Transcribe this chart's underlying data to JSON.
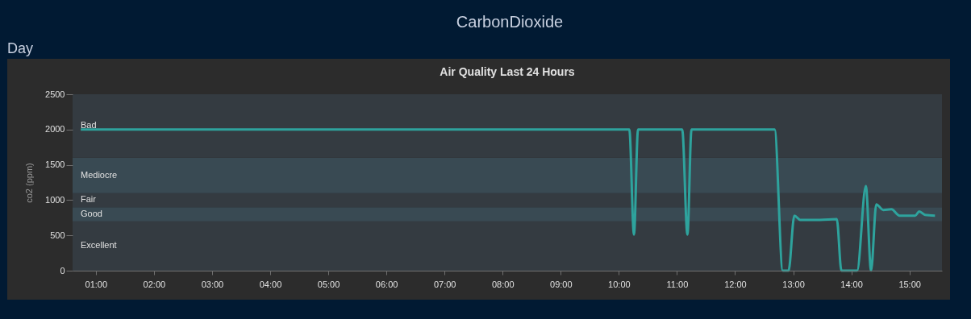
{
  "chart_data": {
    "type": "line",
    "title": "Air Quality Last 24 Hours",
    "ylabel": "co2 (ppm)",
    "annotations": [
      "CarbonDioxide",
      "Day"
    ],
    "x": [
      0.74,
      10.18,
      10.26,
      10.33,
      11.09,
      11.18,
      11.25,
      12.68,
      12.82,
      12.92,
      13.02,
      13.12,
      13.46,
      13.75,
      13.83,
      14.1,
      14.25,
      14.34,
      14.43,
      14.55,
      14.69,
      14.83,
      15.1,
      15.17,
      15.27,
      15.44
    ],
    "series": [
      {
        "color": "#2ea39d",
        "values": [
          2000,
          2000,
          510,
          2000,
          2000,
          510,
          2000,
          2000,
          0,
          0,
          780,
          720,
          720,
          730,
          0,
          0,
          1200,
          0,
          940,
          860,
          870,
          780,
          780,
          840,
          790,
          780
        ]
      }
    ],
    "xlim": [
      0.6,
      15.56
    ],
    "xticks": [
      {
        "value": 1,
        "label": "01:00"
      },
      {
        "value": 2,
        "label": "02:00"
      },
      {
        "value": 3,
        "label": "03:00"
      },
      {
        "value": 4,
        "label": "04:00"
      },
      {
        "value": 5,
        "label": "05:00"
      },
      {
        "value": 6,
        "label": "06:00"
      },
      {
        "value": 7,
        "label": "07:00"
      },
      {
        "value": 8,
        "label": "08:00"
      },
      {
        "value": 9,
        "label": "09:00"
      },
      {
        "value": 10,
        "label": "10:00"
      },
      {
        "value": 11,
        "label": "11:00"
      },
      {
        "value": 12,
        "label": "12:00"
      },
      {
        "value": 13,
        "label": "13:00"
      },
      {
        "value": 14,
        "label": "14:00"
      },
      {
        "value": 15,
        "label": "15:00"
      }
    ],
    "ylim": [
      0,
      2500
    ],
    "yticks": [
      0,
      500,
      1000,
      1500,
      2000,
      2500
    ],
    "bands": [
      {
        "axis": "y",
        "from": 0,
        "to": 700,
        "label": "Excellent",
        "color": "#343b41"
      },
      {
        "axis": "y",
        "from": 700,
        "to": 900,
        "label": "Good",
        "color": "#394a53"
      },
      {
        "axis": "y",
        "from": 900,
        "to": 1100,
        "label": "Fair",
        "color": "#343b41"
      },
      {
        "axis": "y",
        "from": 1100,
        "to": 1600,
        "label": "Mediocre",
        "color": "#394a53"
      },
      {
        "axis": "y",
        "from": 1600,
        "to": 2500,
        "label": "Bad",
        "color": "#343b41"
      }
    ],
    "grid": false,
    "legend": false,
    "marker": "none",
    "line_style": "solid"
  }
}
